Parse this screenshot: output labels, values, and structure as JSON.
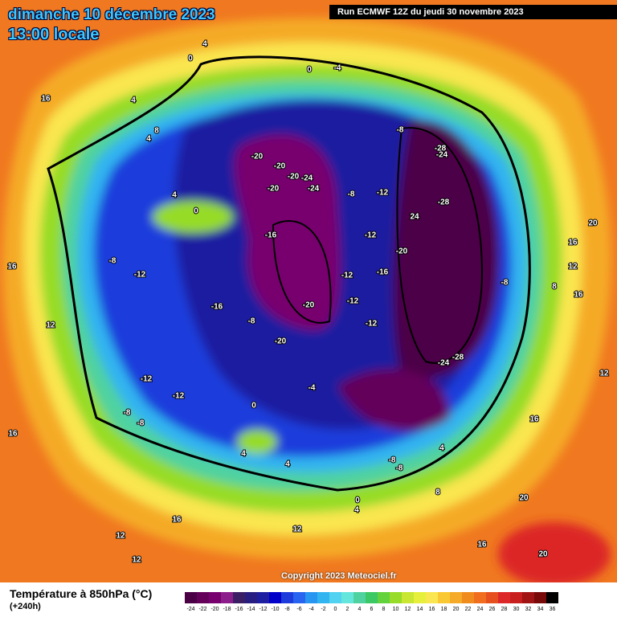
{
  "header": {
    "date": "dimanche 10 décembre 2023",
    "time": "13:00 locale",
    "run": "Run ECMWF 12Z du jeudi 30 novembre 2023"
  },
  "copyright": "Copyright 2023 Meteociel.fr",
  "footer": {
    "title": "Température à 850hPa (°C)",
    "lead": "(+240h)"
  },
  "legend": {
    "ticks": [
      -24,
      -22,
      -20,
      -18,
      -16,
      -14,
      -12,
      -10,
      -8,
      -6,
      -4,
      -2,
      0,
      2,
      4,
      6,
      8,
      10,
      12,
      14,
      16,
      18,
      20,
      22,
      24,
      26,
      28,
      30,
      32,
      34,
      36
    ],
    "colors": [
      "#4b0046",
      "#64005a",
      "#78006e",
      "#8c1e8c",
      "#3c1e64",
      "#281e82",
      "#1e1ea0",
      "#0000c8",
      "#1e3cdc",
      "#2864f0",
      "#2896f0",
      "#32b4f0",
      "#50d2f0",
      "#64e6dc",
      "#50d2a0",
      "#3cc864",
      "#64d23c",
      "#96dc28",
      "#c8e632",
      "#e6f03c",
      "#fae650",
      "#fac832",
      "#f5aa28",
      "#f08c1e",
      "#f06e1e",
      "#e6501e",
      "#dc2828",
      "#c81e1e",
      "#a01414",
      "#780a0a",
      "#000000"
    ]
  },
  "map_labels": [
    "4",
    "0",
    "0",
    "-4",
    "16",
    "4",
    "8",
    "4",
    "-20",
    "-20",
    "-20",
    "-24",
    "-20",
    "-24",
    "-8",
    "-28",
    "-24",
    "-8",
    "-12",
    "-28",
    "24",
    "4",
    "0",
    "-16",
    "-12",
    "-20",
    "-8",
    "-12",
    "-12",
    "-16",
    "-8",
    "-16",
    "-20",
    "-12",
    "-12",
    "-8",
    "-20",
    "-28",
    "-24",
    "-12",
    "-12",
    "-8",
    "-8",
    "-4",
    "0",
    "4",
    "4",
    "4",
    "-8",
    "-8",
    "16",
    "12",
    "16",
    "16",
    "20",
    "20",
    "20",
    "16",
    "12",
    "16",
    "8",
    "12",
    "12",
    "12",
    "16",
    "12",
    "16",
    "0",
    "4",
    "8"
  ]
}
